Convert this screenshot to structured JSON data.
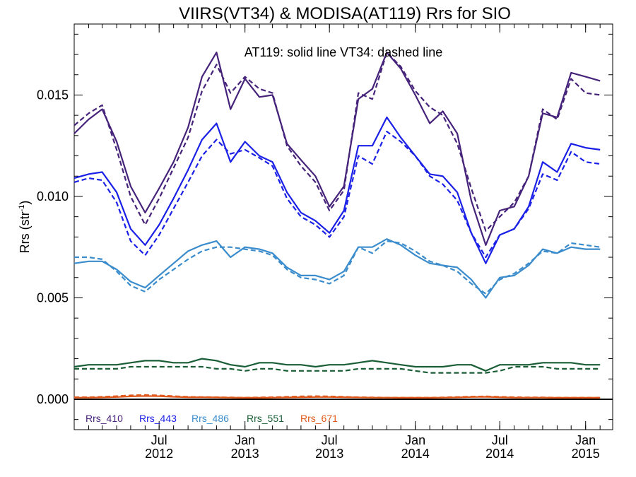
{
  "chart_data": {
    "type": "line",
    "title": "VIIRS(VT34) & MODISA(AT119)  Rrs for SIO",
    "annotation": "AT119: solid line   VT34: dashed line",
    "ylabel": "Rrs (str",
    "ylabel_sup": "-1",
    "ylabel_end": ")",
    "ylim": [
      -0.0015,
      0.0185
    ],
    "yticks": [
      {
        "value": 0.0,
        "label": "0.000"
      },
      {
        "value": 0.005,
        "label": "0.005"
      },
      {
        "value": 0.01,
        "label": "0.010"
      },
      {
        "value": 0.015,
        "label": "0.015"
      }
    ],
    "xlim": [
      "2012-01-01",
      "2015-02-28"
    ],
    "xticks": [
      {
        "date": "2012-07-01",
        "month": "Jul",
        "year": "2012"
      },
      {
        "date": "2013-01-01",
        "month": "Jan",
        "year": "2013"
      },
      {
        "date": "2013-07-01",
        "month": "Jul",
        "year": "2013"
      },
      {
        "date": "2014-01-01",
        "month": "Jan",
        "year": "2014"
      },
      {
        "date": "2014-07-01",
        "month": "Jul",
        "year": "2014"
      },
      {
        "date": "2015-01-01",
        "month": "Jan",
        "year": "2015"
      }
    ],
    "grid": false,
    "legend_position": "bottom-left",
    "x": [
      "2012-01-01",
      "2012-02-01",
      "2012-03-01",
      "2012-04-01",
      "2012-05-01",
      "2012-06-01",
      "2012-07-01",
      "2012-08-01",
      "2012-09-01",
      "2012-10-01",
      "2012-11-01",
      "2012-12-01",
      "2013-01-01",
      "2013-02-01",
      "2013-03-01",
      "2013-04-01",
      "2013-05-01",
      "2013-06-01",
      "2013-07-01",
      "2013-08-01",
      "2013-09-01",
      "2013-10-01",
      "2013-11-01",
      "2013-12-01",
      "2014-01-01",
      "2014-02-01",
      "2014-03-01",
      "2014-04-01",
      "2014-05-01",
      "2014-06-01",
      "2014-07-01",
      "2014-08-01",
      "2014-09-01",
      "2014-10-01",
      "2014-11-01",
      "2014-12-01",
      "2015-01-01",
      "2015-02-01"
    ],
    "series": [
      {
        "name": "Rrs_410",
        "sensor": "AT119",
        "style": "solid",
        "color": "#46237a",
        "values": [
          0.0131,
          0.0138,
          0.0143,
          0.0127,
          0.0105,
          0.0092,
          0.0104,
          0.0117,
          0.0134,
          0.0159,
          0.0171,
          0.0143,
          0.0158,
          0.0149,
          0.015,
          0.0126,
          0.0118,
          0.011,
          0.0095,
          0.0105,
          0.0148,
          0.0153,
          0.0171,
          0.0163,
          0.015,
          0.0136,
          0.0142,
          0.0131,
          0.0098,
          0.0076,
          0.0093,
          0.0095,
          0.011,
          0.0141,
          0.0139,
          0.0161,
          0.0159,
          0.0157
        ]
      },
      {
        "name": "Rrs_410",
        "sensor": "VT34",
        "style": "dashed",
        "color": "#46237a",
        "values": [
          0.0135,
          0.0141,
          0.0145,
          0.0123,
          0.01,
          0.0086,
          0.0099,
          0.0114,
          0.0129,
          0.0152,
          0.0165,
          0.0151,
          0.0159,
          0.0153,
          0.0151,
          0.0125,
          0.0115,
          0.0107,
          0.0093,
          0.0103,
          0.0151,
          0.0148,
          0.0171,
          0.0164,
          0.0152,
          0.0144,
          0.014,
          0.0126,
          0.0104,
          0.0083,
          0.009,
          0.0097,
          0.011,
          0.0143,
          0.0138,
          0.0158,
          0.0151,
          0.015
        ]
      },
      {
        "name": "Rrs_443",
        "sensor": "AT119",
        "style": "solid",
        "color": "#1a20e6",
        "values": [
          0.0109,
          0.0111,
          0.0112,
          0.0102,
          0.0084,
          0.0076,
          0.0086,
          0.0099,
          0.0113,
          0.0128,
          0.0136,
          0.0117,
          0.0127,
          0.012,
          0.0117,
          0.0102,
          0.0092,
          0.0088,
          0.0082,
          0.0093,
          0.0125,
          0.0125,
          0.0139,
          0.0129,
          0.012,
          0.0111,
          0.011,
          0.0102,
          0.0082,
          0.0067,
          0.0081,
          0.0084,
          0.0095,
          0.0117,
          0.0112,
          0.0126,
          0.0124,
          0.0123
        ]
      },
      {
        "name": "Rrs_443",
        "sensor": "VT34",
        "style": "dashed",
        "color": "#1a20e6",
        "values": [
          0.0107,
          0.0109,
          0.0108,
          0.0097,
          0.0078,
          0.0071,
          0.0081,
          0.0094,
          0.0107,
          0.012,
          0.0128,
          0.0121,
          0.0123,
          0.0119,
          0.0115,
          0.0099,
          0.009,
          0.0086,
          0.008,
          0.009,
          0.012,
          0.0116,
          0.0132,
          0.0127,
          0.012,
          0.011,
          0.0106,
          0.0098,
          0.0082,
          0.007,
          0.0081,
          0.0084,
          0.0094,
          0.0111,
          0.0108,
          0.0122,
          0.0117,
          0.0116
        ]
      },
      {
        "name": "Rrs_486",
        "sensor": "AT119",
        "style": "solid",
        "color": "#3a8ccc",
        "values": [
          0.0067,
          0.0068,
          0.0068,
          0.0064,
          0.0058,
          0.0055,
          0.0061,
          0.0067,
          0.0073,
          0.0076,
          0.0078,
          0.007,
          0.0075,
          0.0074,
          0.0072,
          0.0065,
          0.0061,
          0.0061,
          0.0059,
          0.0063,
          0.0075,
          0.0075,
          0.0079,
          0.0076,
          0.0071,
          0.0067,
          0.0066,
          0.0065,
          0.0059,
          0.005,
          0.006,
          0.0061,
          0.0066,
          0.0074,
          0.0072,
          0.0075,
          0.0074,
          0.0074
        ]
      },
      {
        "name": "Rrs_486",
        "sensor": "VT34",
        "style": "dashed",
        "color": "#3a8ccc",
        "values": [
          0.007,
          0.007,
          0.0069,
          0.0063,
          0.0056,
          0.0053,
          0.0059,
          0.0064,
          0.0069,
          0.0073,
          0.0075,
          0.0075,
          0.0074,
          0.0073,
          0.0071,
          0.0064,
          0.006,
          0.0059,
          0.0057,
          0.0061,
          0.0075,
          0.0072,
          0.0078,
          0.0077,
          0.0073,
          0.0068,
          0.0066,
          0.0063,
          0.0057,
          0.0052,
          0.0059,
          0.0062,
          0.0067,
          0.0073,
          0.0072,
          0.0077,
          0.0076,
          0.0075
        ]
      },
      {
        "name": "Rrs_551",
        "sensor": "AT119",
        "style": "solid",
        "color": "#1a5e36",
        "values": [
          0.0016,
          0.0017,
          0.0017,
          0.0017,
          0.0018,
          0.0019,
          0.0019,
          0.0018,
          0.0018,
          0.002,
          0.0019,
          0.0017,
          0.0016,
          0.0018,
          0.0018,
          0.0017,
          0.0017,
          0.0016,
          0.0017,
          0.0017,
          0.0018,
          0.0019,
          0.0018,
          0.0017,
          0.0016,
          0.0016,
          0.0016,
          0.0017,
          0.0017,
          0.0014,
          0.0017,
          0.0017,
          0.0017,
          0.0018,
          0.0018,
          0.0018,
          0.0017,
          0.0017
        ]
      },
      {
        "name": "Rrs_551",
        "sensor": "VT34",
        "style": "dashed",
        "color": "#1a5e36",
        "values": [
          0.0015,
          0.0015,
          0.0015,
          0.0015,
          0.0016,
          0.0016,
          0.0016,
          0.0016,
          0.0016,
          0.0016,
          0.0015,
          0.0015,
          0.0014,
          0.0015,
          0.0015,
          0.0014,
          0.0014,
          0.0014,
          0.0014,
          0.0014,
          0.0015,
          0.0015,
          0.0015,
          0.0015,
          0.0014,
          0.0013,
          0.0013,
          0.0013,
          0.0013,
          0.0013,
          0.0014,
          0.0016,
          0.0016,
          0.0016,
          0.0015,
          0.0015,
          0.0015,
          0.0015
        ]
      },
      {
        "name": "Rrs_671",
        "sensor": "AT119",
        "style": "solid",
        "color": "#e0581c",
        "values": [
          8e-05,
          8e-05,
          9e-05,
          0.00011,
          0.00014,
          0.00016,
          0.00015,
          0.00012,
          0.0001,
          0.0001,
          9e-05,
          8e-05,
          7e-05,
          7e-05,
          8e-05,
          9e-05,
          0.0001,
          0.00011,
          0.00011,
          0.0001,
          9e-05,
          8e-05,
          8e-05,
          7e-05,
          7e-05,
          7e-05,
          8e-05,
          9e-05,
          0.00011,
          0.00012,
          0.0001,
          8e-05,
          8e-05,
          8e-05,
          7e-05,
          7e-05,
          7e-05,
          7e-05
        ]
      },
      {
        "name": "Rrs_671",
        "sensor": "VT34",
        "style": "dashed",
        "color": "#e0581c",
        "values": [
          0.0001,
          0.0001,
          0.00012,
          0.00015,
          0.00019,
          0.00021,
          0.00019,
          0.00015,
          0.00012,
          0.00011,
          0.0001,
          9e-05,
          8e-05,
          9e-05,
          0.0001,
          0.00012,
          0.00014,
          0.00015,
          0.00014,
          0.00012,
          0.0001,
          9e-05,
          8e-05,
          8e-05,
          8e-05,
          8e-05,
          9e-05,
          0.00011,
          0.00013,
          0.00014,
          0.00012,
          0.0001,
          9e-05,
          9e-05,
          8e-05,
          8e-05,
          8e-05,
          8e-05
        ]
      }
    ],
    "legend": [
      {
        "label": "Rrs_410",
        "color": "#46237a"
      },
      {
        "label": "Rrs_443",
        "color": "#1a20e6"
      },
      {
        "label": "Rrs_486",
        "color": "#3a8ccc"
      },
      {
        "label": "Rrs_551",
        "color": "#1a5e36"
      },
      {
        "label": "Rrs_671",
        "color": "#e0581c"
      }
    ]
  }
}
